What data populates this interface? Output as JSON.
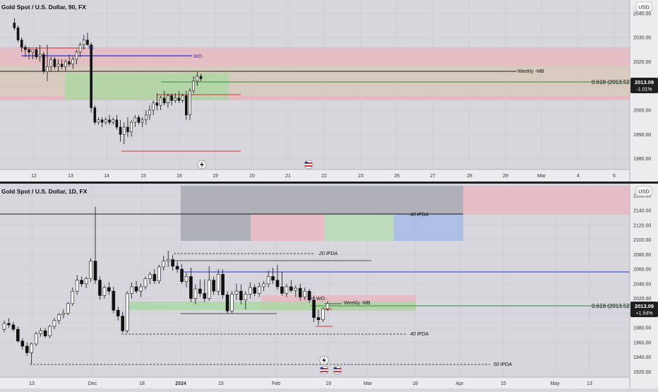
{
  "colors": {
    "background": "#d6d6dc",
    "axis_bg": "#ececef",
    "grid": "#c8c8ce",
    "separator": "#1f1f1f",
    "candle_up": "#ffffff",
    "candle_down": "#111111",
    "red_zone": "#e8b9c2",
    "green_zone": "#a8d8a0",
    "grey_zone": "#a6a6b0",
    "blue_zone": "#a9bde8",
    "blue_line": "#2632d6",
    "red_line": "#d0343a",
    "green_line": "#3a8a3a",
    "price_badge": "#1e1e1e"
  },
  "icons": {
    "flash": "flash-icon",
    "flag": "us-flag-icon"
  },
  "chart_data": [
    {
      "type": "candlestick",
      "title": "Gold Spot / U.S. Dollar, 90, FX",
      "currency": "USD",
      "x_tick_labels": [
        "12",
        "13",
        "14",
        "15",
        "16",
        "19",
        "20",
        "21",
        "22",
        "23",
        "26",
        "27",
        "28",
        "29",
        "Mar",
        "4",
        "5"
      ],
      "y_ticks": [
        1980,
        1990,
        2000,
        2010,
        2020,
        2030,
        2040
      ],
      "ylim": [
        1975.5,
        2045.5
      ],
      "last_price": "2013.09",
      "change": "-1.01%",
      "candles": [
        {
          "x": 1.0,
          "o": 2036,
          "h": 2038,
          "l": 2033,
          "c": 2034
        },
        {
          "x": 1.5,
          "o": 2034,
          "h": 2035,
          "l": 2028,
          "c": 2029
        },
        {
          "x": 2.0,
          "o": 2029,
          "h": 2030,
          "l": 2024,
          "c": 2026
        },
        {
          "x": 2.5,
          "o": 2026,
          "h": 2027,
          "l": 2022,
          "c": 2025
        },
        {
          "x": 3.0,
          "o": 2025,
          "h": 2026,
          "l": 2021,
          "c": 2024
        },
        {
          "x": 3.5,
          "o": 2024,
          "h": 2025,
          "l": 2021,
          "c": 2025
        },
        {
          "x": 4.0,
          "o": 2025,
          "h": 2026,
          "l": 2021,
          "c": 2022
        },
        {
          "x": 4.5,
          "o": 2022,
          "h": 2027,
          "l": 2020,
          "c": 2023
        },
        {
          "x": 5.0,
          "o": 2023,
          "h": 2024,
          "l": 2015,
          "c": 2016
        },
        {
          "x": 5.5,
          "o": 2016,
          "h": 2027,
          "l": 2012,
          "c": 2018
        },
        {
          "x": 6.0,
          "o": 2018,
          "h": 2022,
          "l": 2016,
          "c": 2021
        },
        {
          "x": 6.5,
          "o": 2021,
          "h": 2022,
          "l": 2017,
          "c": 2018
        },
        {
          "x": 7.0,
          "o": 2018,
          "h": 2021,
          "l": 2016,
          "c": 2019
        },
        {
          "x": 7.5,
          "o": 2019,
          "h": 2021,
          "l": 2017,
          "c": 2018
        },
        {
          "x": 8.0,
          "o": 2018,
          "h": 2021,
          "l": 2016,
          "c": 2020
        },
        {
          "x": 8.5,
          "o": 2020,
          "h": 2023,
          "l": 2018,
          "c": 2019
        },
        {
          "x": 9.0,
          "o": 2019,
          "h": 2022,
          "l": 2017,
          "c": 2021
        },
        {
          "x": 9.5,
          "o": 2021,
          "h": 2025,
          "l": 2019,
          "c": 2024
        },
        {
          "x": 10.0,
          "o": 2024,
          "h": 2028,
          "l": 2022,
          "c": 2027
        },
        {
          "x": 10.5,
          "o": 2027,
          "h": 2031,
          "l": 2025,
          "c": 2029
        },
        {
          "x": 11.0,
          "o": 2029,
          "h": 2032,
          "l": 2027,
          "c": 2027
        },
        {
          "x": 11.5,
          "o": 2027,
          "h": 2028,
          "l": 1999,
          "c": 2001
        },
        {
          "x": 12.0,
          "o": 2001,
          "h": 2002,
          "l": 1994,
          "c": 1995
        },
        {
          "x": 12.5,
          "o": 1995,
          "h": 1997,
          "l": 1994,
          "c": 1996
        },
        {
          "x": 13.0,
          "o": 1996,
          "h": 1997,
          "l": 1993,
          "c": 1995
        },
        {
          "x": 13.5,
          "o": 1995,
          "h": 1997,
          "l": 1994,
          "c": 1996
        },
        {
          "x": 14.0,
          "o": 1996,
          "h": 1998,
          "l": 1994,
          "c": 1995
        },
        {
          "x": 14.5,
          "o": 1995,
          "h": 1997,
          "l": 1994,
          "c": 1996
        },
        {
          "x": 15.0,
          "o": 1996,
          "h": 1998,
          "l": 1992,
          "c": 1993
        },
        {
          "x": 15.5,
          "o": 1993,
          "h": 1996,
          "l": 1987,
          "c": 1990
        },
        {
          "x": 16.0,
          "o": 1990,
          "h": 1995,
          "l": 1986,
          "c": 1993
        },
        {
          "x": 16.5,
          "o": 1993,
          "h": 1997,
          "l": 1989,
          "c": 1991
        },
        {
          "x": 17.0,
          "o": 1991,
          "h": 1996,
          "l": 1989,
          "c": 1995
        },
        {
          "x": 17.5,
          "o": 1995,
          "h": 1998,
          "l": 1993,
          "c": 1997
        },
        {
          "x": 18.0,
          "o": 1997,
          "h": 1998,
          "l": 1994,
          "c": 1995
        },
        {
          "x": 18.5,
          "o": 1995,
          "h": 1997,
          "l": 1993,
          "c": 1996
        },
        {
          "x": 19.0,
          "o": 1996,
          "h": 2000,
          "l": 1994,
          "c": 1998
        },
        {
          "x": 19.5,
          "o": 1998,
          "h": 2002,
          "l": 1996,
          "c": 2000
        },
        {
          "x": 20.0,
          "o": 2000,
          "h": 2004,
          "l": 1998,
          "c": 2003
        },
        {
          "x": 20.5,
          "o": 2003,
          "h": 2007,
          "l": 2000,
          "c": 2002
        },
        {
          "x": 21.0,
          "o": 2002,
          "h": 2006,
          "l": 2000,
          "c": 2005
        },
        {
          "x": 21.5,
          "o": 2005,
          "h": 2008,
          "l": 2002,
          "c": 2003
        },
        {
          "x": 22.0,
          "o": 2003,
          "h": 2007,
          "l": 2001,
          "c": 2006
        },
        {
          "x": 22.5,
          "o": 2006,
          "h": 2007,
          "l": 2002,
          "c": 2004
        },
        {
          "x": 23.0,
          "o": 2004,
          "h": 2007,
          "l": 2003,
          "c": 2005
        },
        {
          "x": 23.5,
          "o": 2005,
          "h": 2008,
          "l": 2003,
          "c": 2004
        },
        {
          "x": 24.0,
          "o": 2004,
          "h": 2007,
          "l": 2003,
          "c": 2006
        },
        {
          "x": 24.5,
          "o": 2006,
          "h": 2008,
          "l": 1996,
          "c": 1998
        },
        {
          "x": 25.0,
          "o": 1998,
          "h": 2009,
          "l": 1996,
          "c": 2008
        },
        {
          "x": 25.5,
          "o": 2008,
          "h": 2014,
          "l": 2007,
          "c": 2012
        },
        {
          "x": 26.0,
          "o": 2012,
          "h": 2016,
          "l": 2010,
          "c": 2014
        },
        {
          "x": 26.5,
          "o": 2014,
          "h": 2015,
          "l": 2012,
          "c": 2013
        }
      ]
    },
    {
      "type": "candlestick",
      "title": "Gold Spot / U.S. Dollar, 1D, FX",
      "currency": "USD",
      "x_tick_labels": [
        "13",
        "Dec",
        "18",
        "2024",
        "15",
        "Feb",
        "19",
        "Mar",
        "18",
        "Apr",
        "15",
        "May",
        "13"
      ],
      "y_ticks": [
        1920,
        1940,
        1960,
        1980,
        2000,
        2020,
        2040,
        2060,
        2080,
        2100,
        2120,
        2140,
        2160
      ],
      "ylim": [
        1912.7,
        2176.6
      ],
      "last_price": "2013.09",
      "change": "+1.54%",
      "candles": [
        {
          "x": 0,
          "o": 1978,
          "h": 1990,
          "l": 1974,
          "c": 1986
        },
        {
          "x": 1,
          "o": 1986,
          "h": 1993,
          "l": 1980,
          "c": 1984
        },
        {
          "x": 2,
          "o": 1984,
          "h": 1988,
          "l": 1975,
          "c": 1978
        },
        {
          "x": 3,
          "o": 1978,
          "h": 1982,
          "l": 1960,
          "c": 1962
        },
        {
          "x": 4,
          "o": 1962,
          "h": 1966,
          "l": 1950,
          "c": 1955
        },
        {
          "x": 5,
          "o": 1955,
          "h": 1960,
          "l": 1942,
          "c": 1946
        },
        {
          "x": 6,
          "o": 1946,
          "h": 1960,
          "l": 1931,
          "c": 1958
        },
        {
          "x": 7,
          "o": 1958,
          "h": 1975,
          "l": 1955,
          "c": 1972
        },
        {
          "x": 8,
          "o": 1972,
          "h": 1980,
          "l": 1968,
          "c": 1976
        },
        {
          "x": 9,
          "o": 1976,
          "h": 1980,
          "l": 1966,
          "c": 1969
        },
        {
          "x": 10,
          "o": 1969,
          "h": 1984,
          "l": 1966,
          "c": 1982
        },
        {
          "x": 11,
          "o": 1982,
          "h": 1993,
          "l": 1978,
          "c": 1990
        },
        {
          "x": 12,
          "o": 1990,
          "h": 2000,
          "l": 1985,
          "c": 1998
        },
        {
          "x": 13,
          "o": 1998,
          "h": 2005,
          "l": 1993,
          "c": 2000
        },
        {
          "x": 14,
          "o": 2000,
          "h": 2015,
          "l": 1997,
          "c": 2013
        },
        {
          "x": 15,
          "o": 2013,
          "h": 2035,
          "l": 2010,
          "c": 2030
        },
        {
          "x": 16,
          "o": 2030,
          "h": 2052,
          "l": 2025,
          "c": 2045
        },
        {
          "x": 17,
          "o": 2045,
          "h": 2050,
          "l": 2036,
          "c": 2040
        },
        {
          "x": 18,
          "o": 2040,
          "h": 2050,
          "l": 2034,
          "c": 2047
        },
        {
          "x": 19,
          "o": 2047,
          "h": 2075,
          "l": 2043,
          "c": 2071
        },
        {
          "x": 20,
          "o": 2071,
          "h": 2145,
          "l": 2040,
          "c": 2045
        },
        {
          "x": 21,
          "o": 2045,
          "h": 2050,
          "l": 2018,
          "c": 2024
        },
        {
          "x": 22,
          "o": 2024,
          "h": 2038,
          "l": 2020,
          "c": 2035
        },
        {
          "x": 23,
          "o": 2035,
          "h": 2042,
          "l": 2025,
          "c": 2030
        },
        {
          "x": 24,
          "o": 2030,
          "h": 2036,
          "l": 2000,
          "c": 2004
        },
        {
          "x": 25,
          "o": 2004,
          "h": 2009,
          "l": 1990,
          "c": 1996
        },
        {
          "x": 26,
          "o": 1996,
          "h": 2002,
          "l": 1973,
          "c": 1976
        },
        {
          "x": 27,
          "o": 1976,
          "h": 2030,
          "l": 1973,
          "c": 2027
        },
        {
          "x": 28,
          "o": 2027,
          "h": 2042,
          "l": 2020,
          "c": 2036
        },
        {
          "x": 29,
          "o": 2036,
          "h": 2044,
          "l": 2027,
          "c": 2030
        },
        {
          "x": 30,
          "o": 2030,
          "h": 2040,
          "l": 2022,
          "c": 2036
        },
        {
          "x": 31,
          "o": 2036,
          "h": 2050,
          "l": 2032,
          "c": 2047
        },
        {
          "x": 32,
          "o": 2047,
          "h": 2056,
          "l": 2040,
          "c": 2053
        },
        {
          "x": 33,
          "o": 2053,
          "h": 2060,
          "l": 2040,
          "c": 2044
        },
        {
          "x": 34,
          "o": 2044,
          "h": 2066,
          "l": 2040,
          "c": 2063
        },
        {
          "x": 35,
          "o": 2063,
          "h": 2078,
          "l": 2058,
          "c": 2071
        },
        {
          "x": 36,
          "o": 2071,
          "h": 2085,
          "l": 2063,
          "c": 2073
        },
        {
          "x": 37,
          "o": 2073,
          "h": 2079,
          "l": 2058,
          "c": 2064
        },
        {
          "x": 38,
          "o": 2064,
          "h": 2070,
          "l": 2055,
          "c": 2060
        },
        {
          "x": 39,
          "o": 2060,
          "h": 2067,
          "l": 2040,
          "c": 2043
        },
        {
          "x": 40,
          "o": 2043,
          "h": 2055,
          "l": 2035,
          "c": 2050
        },
        {
          "x": 41,
          "o": 2050,
          "h": 2062,
          "l": 2015,
          "c": 2020
        },
        {
          "x": 42,
          "o": 2020,
          "h": 2039,
          "l": 2012,
          "c": 2033
        },
        {
          "x": 43,
          "o": 2033,
          "h": 2046,
          "l": 2022,
          "c": 2027
        },
        {
          "x": 44,
          "o": 2027,
          "h": 2046,
          "l": 2015,
          "c": 2020
        },
        {
          "x": 45,
          "o": 2020,
          "h": 2064,
          "l": 2017,
          "c": 2045
        },
        {
          "x": 46,
          "o": 2045,
          "h": 2050,
          "l": 2025,
          "c": 2030
        },
        {
          "x": 47,
          "o": 2030,
          "h": 2060,
          "l": 2024,
          "c": 2053
        },
        {
          "x": 48,
          "o": 2053,
          "h": 2060,
          "l": 2020,
          "c": 2025
        },
        {
          "x": 49,
          "o": 2025,
          "h": 2030,
          "l": 2000,
          "c": 2003
        },
        {
          "x": 50,
          "o": 2003,
          "h": 2030,
          "l": 2000,
          "c": 2026
        },
        {
          "x": 51,
          "o": 2026,
          "h": 2040,
          "l": 2018,
          "c": 2030
        },
        {
          "x": 52,
          "o": 2030,
          "h": 2039,
          "l": 2012,
          "c": 2018
        },
        {
          "x": 53,
          "o": 2018,
          "h": 2030,
          "l": 2005,
          "c": 2026
        },
        {
          "x": 54,
          "o": 2026,
          "h": 2042,
          "l": 2020,
          "c": 2035
        },
        {
          "x": 55,
          "o": 2035,
          "h": 2039,
          "l": 2023,
          "c": 2027
        },
        {
          "x": 56,
          "o": 2027,
          "h": 2042,
          "l": 2022,
          "c": 2036
        },
        {
          "x": 57,
          "o": 2036,
          "h": 2044,
          "l": 2030,
          "c": 2040
        },
        {
          "x": 58,
          "o": 2040,
          "h": 2058,
          "l": 2035,
          "c": 2050
        },
        {
          "x": 59,
          "o": 2050,
          "h": 2062,
          "l": 2040,
          "c": 2045
        },
        {
          "x": 60,
          "o": 2045,
          "h": 2066,
          "l": 2032,
          "c": 2036
        },
        {
          "x": 61,
          "o": 2036,
          "h": 2056,
          "l": 2024,
          "c": 2027
        },
        {
          "x": 62,
          "o": 2027,
          "h": 2040,
          "l": 2022,
          "c": 2036
        },
        {
          "x": 63,
          "o": 2036,
          "h": 2045,
          "l": 2028,
          "c": 2031
        },
        {
          "x": 64,
          "o": 2031,
          "h": 2038,
          "l": 2022,
          "c": 2034
        },
        {
          "x": 65,
          "o": 2034,
          "h": 2040,
          "l": 2017,
          "c": 2022
        },
        {
          "x": 66,
          "o": 2022,
          "h": 2035,
          "l": 2018,
          "c": 2030
        },
        {
          "x": 67,
          "o": 2030,
          "h": 2033,
          "l": 2014,
          "c": 2018
        },
        {
          "x": 68,
          "o": 2018,
          "h": 2024,
          "l": 1988,
          "c": 1994
        },
        {
          "x": 69,
          "o": 1994,
          "h": 2004,
          "l": 1984,
          "c": 1991
        },
        {
          "x": 70,
          "o": 1991,
          "h": 2008,
          "l": 1988,
          "c": 2006
        },
        {
          "x": 71,
          "o": 2006,
          "h": 2016,
          "l": 2003,
          "c": 2013
        }
      ]
    }
  ],
  "panel1": {
    "title": "Gold Spot / U.S. Dollar, 90, FX",
    "currency": "USD",
    "price_label": "2013.09",
    "change_label": "-1.01%",
    "fib_label": "0.618 (2013.52)",
    "weekly_label": "Weekly -MB",
    "wo_label": "WO ·",
    "ts_label": "TS"
  },
  "panel2": {
    "title": "Gold Spot / U.S. Dollar, 1D, FX",
    "currency": "USD",
    "price_label": "2013.09",
    "change_label": "+1.54%",
    "fib_label": "0.618 (2013.52)",
    "weekly_label": "Weekly -MB",
    "wo_label": "WO ·",
    "ipda40_top": "40 IPDA",
    "ipda20": "20 IPDA",
    "ipda40_bottom": "40 IPDA",
    "ipda60": "60 IPDA"
  }
}
